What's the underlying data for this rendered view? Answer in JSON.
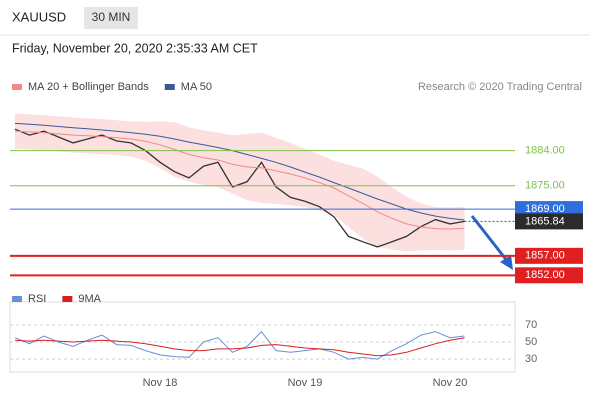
{
  "header": {
    "symbol": "XAUUSD",
    "timeframe": "30 MIN",
    "datetime": "Friday, November 20, 2020 2:35:33 AM CET"
  },
  "chart_data": [
    {
      "type": "line",
      "credit": "Research © 2020 Trading Central",
      "categories": [
        null,
        null,
        null,
        null,
        null,
        null,
        null,
        null,
        null,
        null,
        null,
        null,
        null,
        null,
        null,
        null,
        null,
        null,
        null,
        null,
        null,
        null,
        null,
        null,
        null,
        null,
        null,
        null,
        null,
        null,
        null,
        null
      ],
      "ylim": [
        1849,
        1897
      ],
      "series": [
        {
          "color": "#333333",
          "values": [
            1889.5,
            1888,
            1889,
            1887.5,
            1886,
            1887,
            1888,
            1886.5,
            1886,
            1884,
            1881,
            1878.6,
            1877,
            1880,
            1881,
            1874.7,
            1876,
            1881,
            1874.7,
            1872,
            1871,
            1869.6,
            1867,
            1862,
            1860.6,
            1859.3,
            1860.6,
            1862,
            1864.5,
            1866.3,
            1865.2,
            1865.84
          ]
        },
        {
          "name": "MA 20 + Bollinger Bands",
          "color": "#f08a8a",
          "band_color": "#fbd9d9",
          "values": [
            1889,
            1888.8,
            1888.6,
            1888.3,
            1888,
            1887.8,
            1887.6,
            1887.3,
            1887,
            1886.4,
            1885.5,
            1884.3,
            1883,
            1882.2,
            1881.6,
            1880.5,
            1879.8,
            1879.6,
            1878.8,
            1878,
            1877,
            1875.8,
            1874.4,
            1872.4,
            1870.4,
            1868.3,
            1866.6,
            1865.2,
            1864.4,
            1864,
            1863.9,
            1864.1
          ],
          "upper": [
            1893.5,
            1893.3,
            1893.1,
            1892.8,
            1892.5,
            1892.3,
            1892.1,
            1891.8,
            1891.5,
            1891.4,
            1891.5,
            1891.3,
            1890,
            1889.2,
            1888.6,
            1888,
            1888.3,
            1888.6,
            1887.3,
            1886,
            1884.5,
            1883,
            1881.4,
            1880.4,
            1879.4,
            1877.3,
            1874.6,
            1872.2,
            1870.4,
            1869.5,
            1869.4,
            1869.6
          ],
          "lower": [
            1884.5,
            1884.3,
            1884.1,
            1883.8,
            1883.5,
            1883.3,
            1883.1,
            1882.8,
            1882.5,
            1881.4,
            1879.5,
            1877.3,
            1876,
            1875.2,
            1874.6,
            1873,
            1871.3,
            1870.6,
            1870.3,
            1870,
            1869.5,
            1868.6,
            1867.4,
            1864.4,
            1861.4,
            1859.3,
            1858.6,
            1858.2,
            1858.4,
            1858.5,
            1858.4,
            1858.6
          ]
        },
        {
          "name": "MA 50",
          "color": "#3b5998",
          "values": [
            1891,
            1890.8,
            1890.5,
            1890.2,
            1889.9,
            1889.6,
            1889.3,
            1889,
            1888.6,
            1888.2,
            1887.7,
            1887,
            1886.2,
            1885.5,
            1884.8,
            1884,
            1883,
            1882,
            1881,
            1879.8,
            1878.5,
            1877.2,
            1875.8,
            1874.4,
            1873,
            1871.6,
            1870.3,
            1869,
            1868,
            1867.2,
            1866.6,
            1866.2
          ]
        }
      ],
      "levels": [
        {
          "value": 1884,
          "label": "1884.00",
          "color": "#7cc24a",
          "boxed": false
        },
        {
          "value": 1875,
          "label": "1875.00",
          "color": "#7cc24a",
          "boxed": false
        },
        {
          "value": 1869,
          "label": "1869.00",
          "color": "#2f6fdb",
          "boxed": true
        },
        {
          "value": 1857,
          "label": "1857.00",
          "color": "#e02020",
          "boxed": true
        },
        {
          "value": 1852,
          "label": "1852.00",
          "color": "#e02020",
          "boxed": true
        }
      ]
    },
    {
      "type": "line",
      "categories": [
        null,
        null,
        null,
        null,
        null,
        null,
        null,
        null,
        null,
        null,
        "Nov 18",
        null,
        null,
        null,
        null,
        null,
        null,
        null,
        null,
        null,
        "Nov 19",
        null,
        null,
        null,
        null,
        null,
        null,
        null,
        null,
        null,
        "Nov 20",
        null
      ],
      "ylim": [
        15,
        85
      ],
      "yticks": [
        30,
        50,
        70
      ],
      "series": [
        {
          "name": "RSI",
          "color": "#6a8fd8",
          "values": [
            55,
            48,
            57,
            50,
            45,
            52,
            58,
            47,
            46,
            40,
            35,
            33,
            32,
            50,
            55,
            38,
            45,
            62,
            40,
            38,
            40,
            42,
            38,
            30,
            32,
            30,
            40,
            48,
            58,
            62,
            55,
            57
          ]
        },
        {
          "name": "9MA",
          "color": "#d62020",
          "values": [
            52,
            51,
            52,
            51,
            50,
            51,
            52,
            51,
            50,
            48,
            45,
            42,
            40,
            40,
            42,
            42,
            43,
            46,
            47,
            45,
            43,
            42,
            41,
            38,
            36,
            34,
            35,
            38,
            43,
            48,
            52,
            55
          ]
        }
      ]
    }
  ]
}
